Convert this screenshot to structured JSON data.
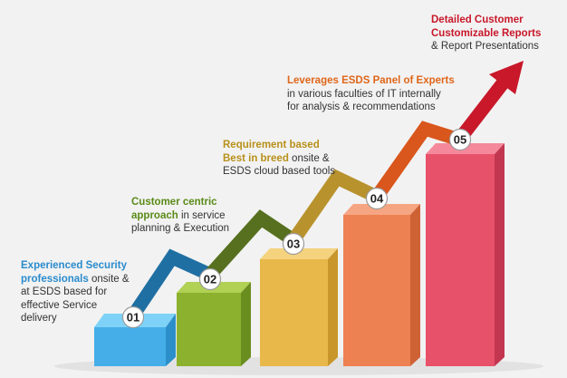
{
  "colors": {
    "background": "#f2f2f2",
    "step1": "#45aee8",
    "step2": "#8cb12f",
    "step3": "#e8b84a",
    "step4": "#ee8152",
    "step5": "#e8516a",
    "arrow1": "#1f6fa3",
    "arrow2": "#56701f",
    "arrow3": "#b8922d",
    "arrow4": "#d9561c",
    "arrow5": "#c8182a"
  },
  "steps": [
    {
      "number": "01",
      "highlight_color": "#2a8bcc",
      "caption": {
        "line1_bold": "Experienced Security",
        "line2_bold": "professionals",
        "line2_rest": " onsite &",
        "line3": "at ESDS based for",
        "line4": "effective Service",
        "line5": "delivery"
      }
    },
    {
      "number": "02",
      "highlight_color": "#5a8a18",
      "caption": {
        "line1_bold": "Customer centric",
        "line2_bold": "approach",
        "line2_rest": " in service",
        "line3": "planning & Execution"
      }
    },
    {
      "number": "03",
      "highlight_color": "#b8901a",
      "caption": {
        "line1_bold": "Requirement based",
        "line2_bold": "Best in breed",
        "line2_rest": " onsite &",
        "line3": "ESDS cloud based tools"
      }
    },
    {
      "number": "04",
      "highlight_color": "#e0661a",
      "caption": {
        "line1_bold": "Leverages ESDS Panel of Experts",
        "line2": "in various faculties of IT internally",
        "line3": "for analysis & recommendations"
      }
    },
    {
      "number": "05",
      "highlight_color": "#c8182a",
      "caption": {
        "line1_bold": "Detailed Customer",
        "line2_bold": "Customizable Reports",
        "line3": "& Report Presentations"
      }
    }
  ]
}
